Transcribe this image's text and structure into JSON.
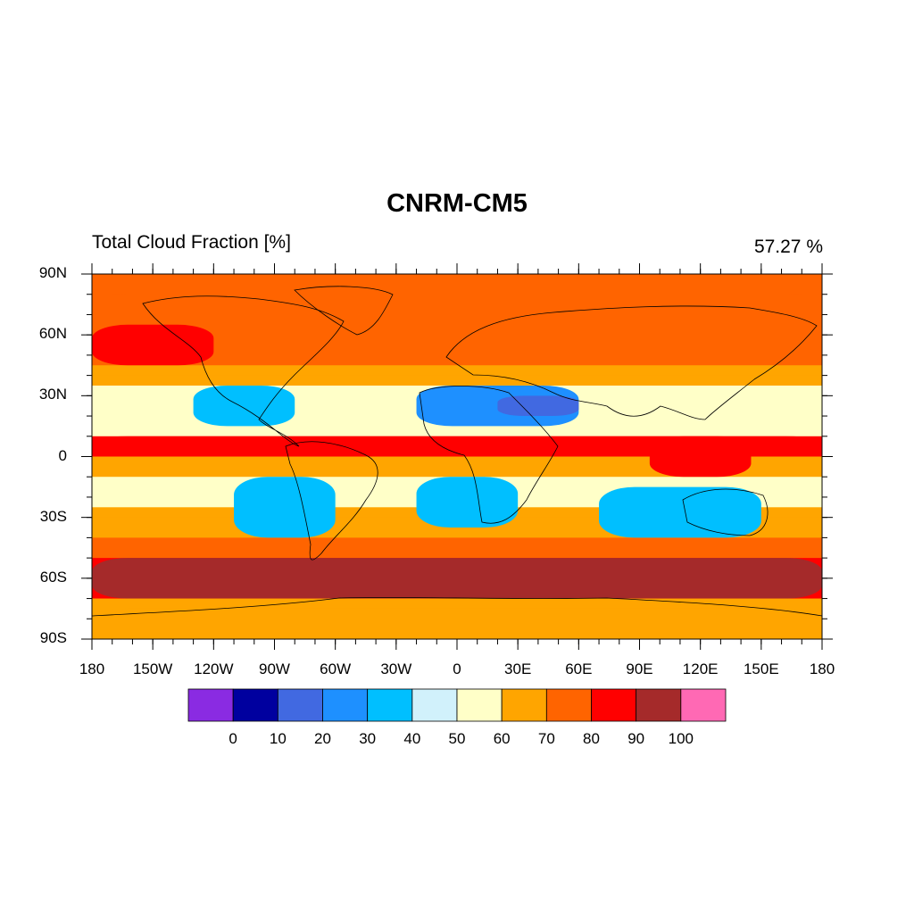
{
  "title": "CNRM-CM5",
  "subtitle_left": "Total Cloud Fraction [%]",
  "subtitle_right": "57.27 %",
  "y_ticks": [
    "90N",
    "60N",
    "30N",
    "0",
    "30S",
    "60S",
    "90S"
  ],
  "x_ticks": [
    "180",
    "150W",
    "120W",
    "90W",
    "60W",
    "30W",
    "0",
    "30E",
    "60E",
    "90E",
    "120E",
    "150E",
    "180"
  ],
  "colorbar": {
    "labels": [
      "0",
      "10",
      "20",
      "30",
      "40",
      "50",
      "60",
      "70",
      "80",
      "90",
      "100"
    ],
    "colors": [
      "#8a2be2",
      "#00009f",
      "#4169e1",
      "#1e90ff",
      "#00bfff",
      "#d1f1fb",
      "#ffffc8",
      "#ffa500",
      "#ff6400",
      "#ff0000",
      "#a52a2a",
      "#ff69b4"
    ]
  },
  "chart_data": {
    "type": "heatmap",
    "variable": "Total Cloud Fraction [%]",
    "global_mean_percent": 57.27,
    "x_range_degrees": [
      -180,
      180
    ],
    "y_range_degrees": [
      -90,
      90
    ],
    "color_levels": [
      0,
      10,
      20,
      30,
      40,
      50,
      60,
      70,
      80,
      90,
      100
    ],
    "regions": [
      {
        "lon": [
          -180,
          180
        ],
        "lat": [
          80,
          90
        ],
        "value": 75
      },
      {
        "lon": [
          -180,
          -120
        ],
        "lat": [
          45,
          65
        ],
        "value": 88
      },
      {
        "lon": [
          -130,
          -80
        ],
        "lat": [
          15,
          35
        ],
        "value": 35
      },
      {
        "lon": [
          -20,
          60
        ],
        "lat": [
          15,
          35
        ],
        "value": 25
      },
      {
        "lon": [
          20,
          60
        ],
        "lat": [
          20,
          30
        ],
        "value": 15
      },
      {
        "lon": [
          -180,
          180
        ],
        "lat": [
          3,
          10
        ],
        "value": 85
      },
      {
        "lon": [
          95,
          145
        ],
        "lat": [
          -10,
          10
        ],
        "value": 88
      },
      {
        "lon": [
          -110,
          -60
        ],
        "lat": [
          -40,
          -10
        ],
        "value": 35
      },
      {
        "lon": [
          -20,
          30
        ],
        "lat": [
          -35,
          -10
        ],
        "value": 30
      },
      {
        "lon": [
          70,
          150
        ],
        "lat": [
          -40,
          -15
        ],
        "value": 35
      },
      {
        "lon": [
          -180,
          180
        ],
        "lat": [
          -70,
          -50
        ],
        "value": 92
      },
      {
        "lon": [
          -180,
          180
        ],
        "lat": [
          -90,
          -75
        ],
        "value": 65
      }
    ]
  }
}
